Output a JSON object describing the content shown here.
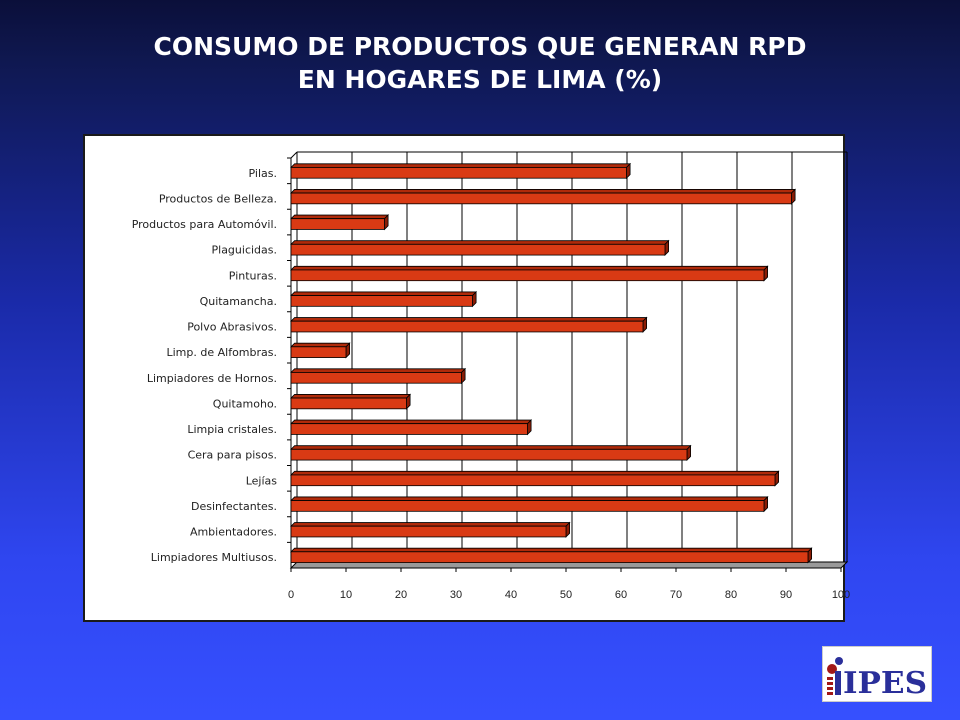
{
  "title_lines": [
    "CONSUMO DE PRODUCTOS QUE GENERAN RPD",
    "EN HOGARES DE LIMA (%)"
  ],
  "logo_text": "IPES",
  "colors": {
    "bar": "#d93a14",
    "bar_top": "#b02a0a",
    "bar_side": "#8a1c05",
    "floor": "#9a9a9a"
  },
  "chart_data": {
    "type": "bar",
    "orientation": "horizontal",
    "title": "CONSUMO DE PRODUCTOS QUE GENERAN RPD EN HOGARES DE LIMA (%)",
    "categories": [
      "Pilas.",
      "Productos de Belleza.",
      "Productos para Automóvil.",
      "Plaguicidas.",
      "Pinturas.",
      "Quitamancha.",
      "Polvo Abrasivos.",
      "Limp. de Alfombras.",
      "Limpiadores de Hornos.",
      "Quitamoho.",
      "Limpia cristales.",
      "Cera para pisos.",
      "Lejías",
      "Desinfectantes.",
      "Ambientadores.",
      "Limpiadores Multiusos."
    ],
    "values": [
      61,
      91,
      17,
      68,
      86,
      33,
      64,
      10,
      31,
      21,
      43,
      72,
      88,
      86,
      50,
      94
    ],
    "xlim": [
      0,
      100
    ],
    "xticks": [
      "0",
      "10",
      "20",
      "30",
      "40",
      "50",
      "60",
      "70",
      "80",
      "90",
      "100"
    ],
    "grid": true,
    "legend": "none",
    "style": "3d"
  }
}
